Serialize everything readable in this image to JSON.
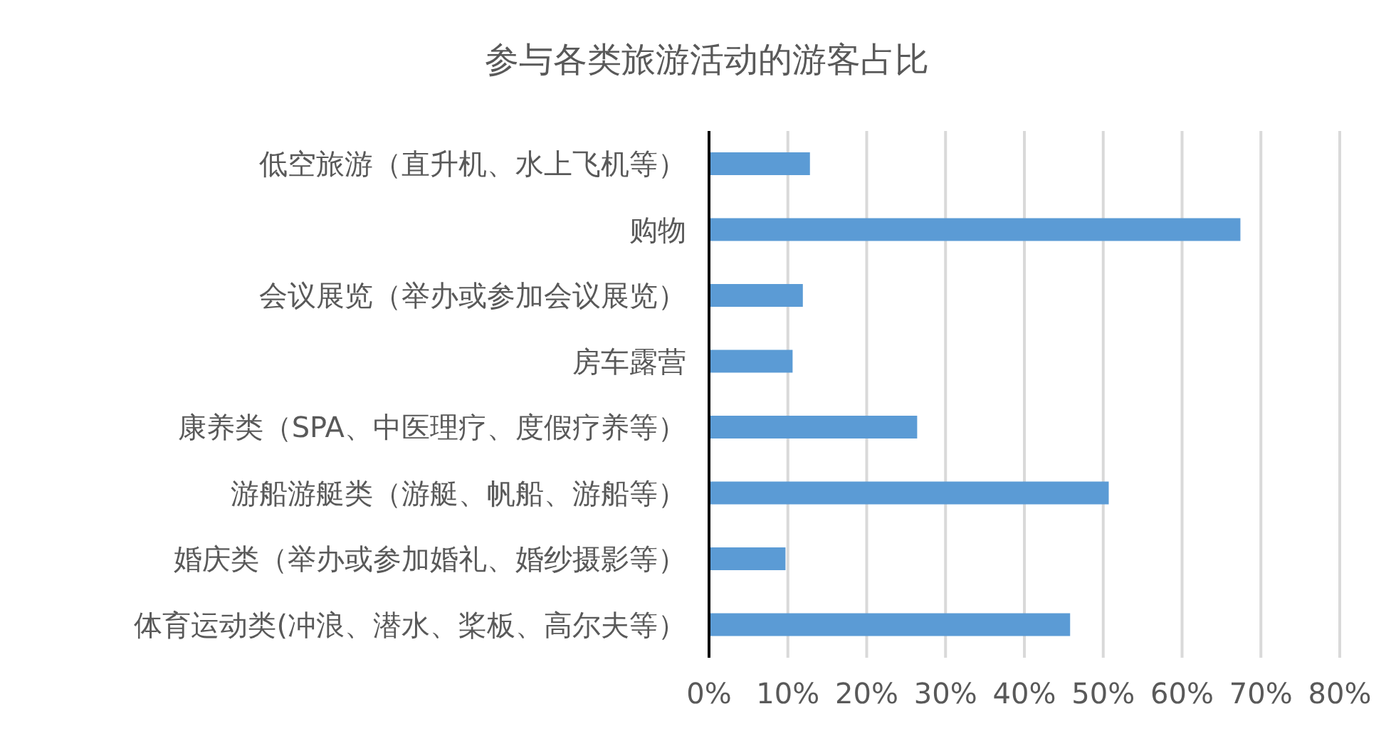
{
  "chart_data": {
    "type": "bar",
    "orientation": "horizontal",
    "title": "参与各类旅游活动的游客占比",
    "categories": [
      "低空旅游（直升机、水上飞机等）",
      "购物",
      "会议展览（举办或参加会议展览）",
      "房车露营",
      "康养类（SPA、中医理疗、度假疗养等）",
      "游船游艇类（游艇、帆船、游船等）",
      "婚庆类（举办或参加婚礼、婚纱摄影等）",
      "体育运动类(冲浪、潜水、桨板、高尔夫等）"
    ],
    "values": [
      12.8,
      67.4,
      11.9,
      10.6,
      26.4,
      50.7,
      9.7,
      45.8
    ],
    "color": "#5b9bd5",
    "xlim": [
      0,
      80
    ],
    "xticks": [
      {
        "value": 0,
        "label": "0%"
      },
      {
        "value": 10,
        "label": "10%"
      },
      {
        "value": 20,
        "label": "20%"
      },
      {
        "value": 30,
        "label": "30%"
      },
      {
        "value": 40,
        "label": "40%"
      },
      {
        "value": 50,
        "label": "50%"
      },
      {
        "value": 60,
        "label": "60%"
      },
      {
        "value": 70,
        "label": "70%"
      },
      {
        "value": 80,
        "label": "80%"
      }
    ],
    "grid": "x"
  }
}
